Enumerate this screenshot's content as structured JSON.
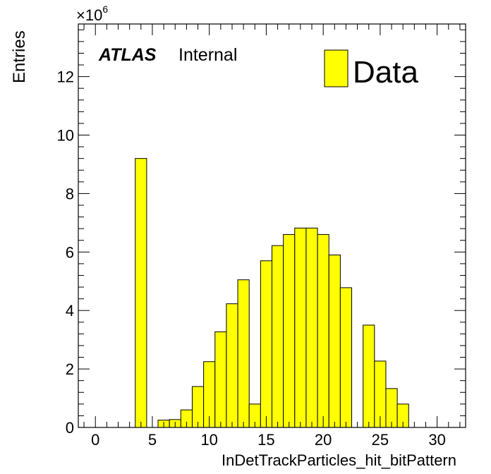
{
  "chart_data": {
    "type": "bar",
    "title": "",
    "xlabel": "InDetTrackParticles_hit_bitPattern",
    "ylabel": "Entries",
    "scale_label": "×10",
    "scale_exponent": "6",
    "xlim": [
      -1.5,
      32.5
    ],
    "ylim": [
      0,
      13.8
    ],
    "x_ticks": [
      0,
      5,
      10,
      15,
      20,
      25,
      30
    ],
    "y_ticks": [
      0,
      2,
      4,
      6,
      8,
      10,
      12
    ],
    "bin_width": 1,
    "bin_centers": [
      0,
      1,
      2,
      3,
      4,
      5,
      6,
      7,
      8,
      9,
      10,
      11,
      12,
      13,
      14,
      15,
      16,
      17,
      18,
      19,
      20,
      21,
      22,
      23,
      24,
      25,
      26,
      27,
      28,
      29,
      30,
      31
    ],
    "values": [
      0,
      0,
      0,
      0,
      9.2,
      0,
      0.25,
      0.27,
      0.6,
      1.4,
      2.25,
      3.27,
      4.23,
      5.05,
      0.8,
      5.7,
      6.22,
      6.6,
      6.82,
      6.82,
      6.6,
      5.9,
      4.78,
      0,
      3.5,
      2.27,
      1.33,
      0.8,
      0,
      0,
      0,
      0
    ],
    "series": [
      {
        "name": "Data",
        "color": "#ffff00"
      }
    ],
    "legend_position": "top-right",
    "grid": false,
    "experiment_label": "ATLAS",
    "status_label": "Internal"
  }
}
